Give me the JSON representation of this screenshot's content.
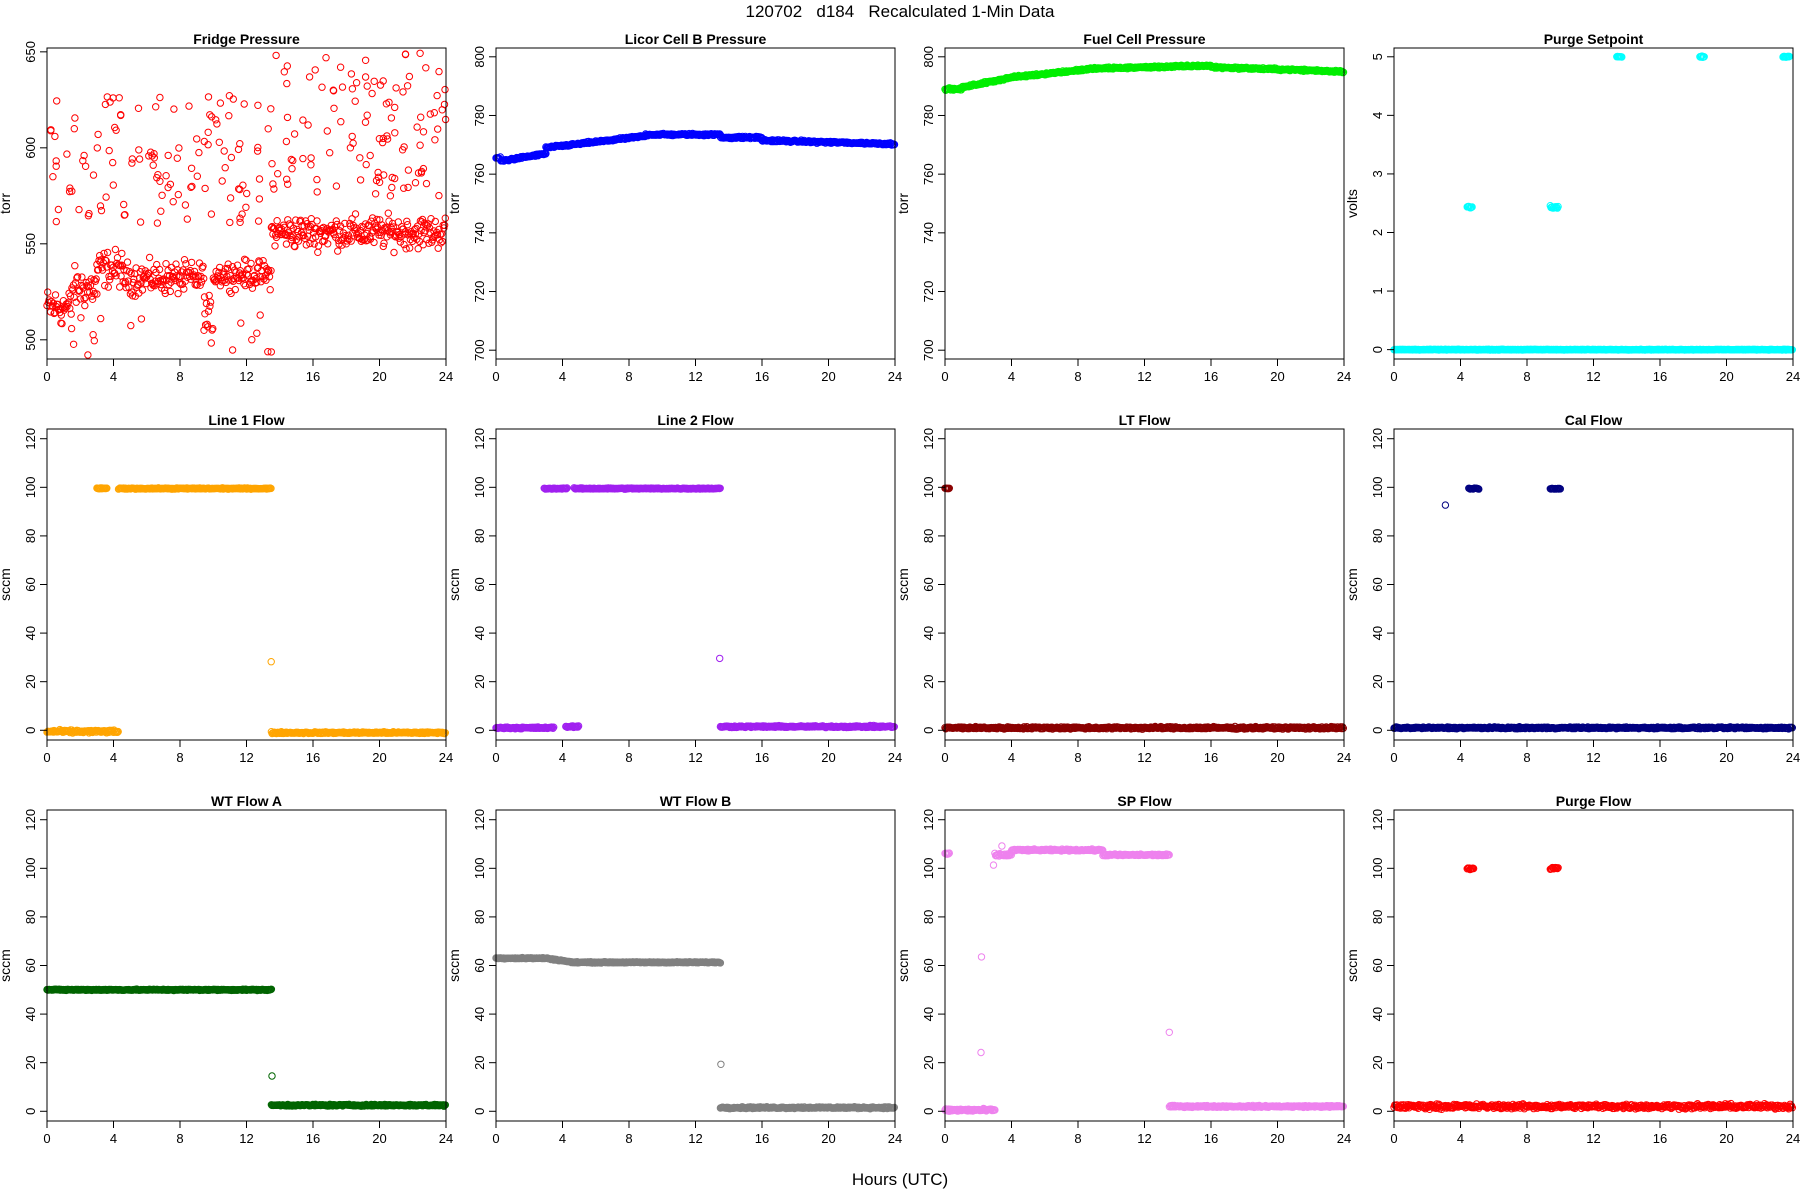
{
  "figure": {
    "title": "120702   d184   Recalculated 1-Min Data",
    "xlabel": "Hours (UTC)"
  },
  "chart_data": [
    {
      "type": "scatter",
      "title": "Fridge Pressure",
      "ylabel": "torr",
      "color": "#ff0000",
      "xlim": [
        0,
        24
      ],
      "ylim": [
        490,
        652
      ],
      "xticks": [
        0,
        4,
        8,
        12,
        16,
        20,
        24
      ],
      "yticks": [
        500,
        550,
        600,
        650
      ],
      "segments": [
        {
          "x0": 0,
          "x1": 1.5,
          "y": 517,
          "jitter": 8
        },
        {
          "x0": 1.5,
          "x1": 3,
          "y": 527,
          "jitter": 9
        },
        {
          "x0": 3,
          "x1": 4.5,
          "y": 537,
          "jitter": 8
        },
        {
          "x0": 4.5,
          "x1": 9.5,
          "y": 532,
          "jitter": 7
        },
        {
          "x0": 9.5,
          "x1": 10,
          "y": 510,
          "jitter": 10
        },
        {
          "x0": 10,
          "x1": 13.5,
          "y": 534,
          "jitter": 6
        },
        {
          "x0": 13.5,
          "x1": 24,
          "y": 556,
          "jitter": 7
        }
      ],
      "outliers": [
        {
          "x0": 0,
          "x1": 13.5,
          "ymin": 560,
          "ymax": 628,
          "n": 120
        },
        {
          "x0": 13.5,
          "x1": 24,
          "ymin": 575,
          "ymax": 650,
          "n": 110
        },
        {
          "x0": 0,
          "x1": 13.5,
          "ymin": 492,
          "ymax": 515,
          "n": 18
        }
      ]
    },
    {
      "type": "scatter",
      "title": "Licor Cell B Pressure",
      "ylabel": "torr",
      "color": "#0000ff",
      "xlim": [
        0,
        24
      ],
      "ylim": [
        697,
        803
      ],
      "xticks": [
        0,
        4,
        8,
        12,
        16,
        20,
        24
      ],
      "yticks": [
        700,
        720,
        740,
        760,
        780,
        800
      ],
      "segments": [
        {
          "x0": 0,
          "x1": 0.3,
          "y": 765.5,
          "jitter": 0.3
        },
        {
          "x0": 0.3,
          "x1": 3,
          "y0": 764.5,
          "y1": 767,
          "jitter": 0.3
        },
        {
          "x0": 3,
          "x1": 9,
          "y0": 769,
          "y1": 773,
          "jitter": 0.3
        },
        {
          "x0": 9,
          "x1": 13.5,
          "y": 773.5,
          "jitter": 0.3
        },
        {
          "x0": 13.5,
          "x1": 16,
          "y": 772.5,
          "jitter": 0.3
        },
        {
          "x0": 16,
          "x1": 24,
          "y0": 771.5,
          "y1": 770.3,
          "jitter": 0.3
        }
      ],
      "outliers": []
    },
    {
      "type": "scatter",
      "title": "Fuel Cell Pressure",
      "ylabel": "torr",
      "color": "#00ee00",
      "xlim": [
        0,
        24
      ],
      "ylim": [
        697,
        803
      ],
      "xticks": [
        0,
        4,
        8,
        12,
        16,
        20,
        24
      ],
      "yticks": [
        700,
        720,
        740,
        760,
        780,
        800
      ],
      "segments": [
        {
          "x0": 0,
          "x1": 1,
          "y": 789,
          "jitter": 0.3
        },
        {
          "x0": 1,
          "x1": 4,
          "y0": 789.5,
          "y1": 793,
          "jitter": 0.3
        },
        {
          "x0": 4,
          "x1": 9,
          "y0": 793,
          "y1": 796,
          "jitter": 0.3
        },
        {
          "x0": 9,
          "x1": 16,
          "y0": 796,
          "y1": 797,
          "jitter": 0.3
        },
        {
          "x0": 16,
          "x1": 24,
          "y0": 796.5,
          "y1": 795,
          "jitter": 0.3
        }
      ],
      "outliers": []
    },
    {
      "type": "scatter",
      "title": "Purge Setpoint",
      "ylabel": "volts",
      "color": "#00ffff",
      "xlim": [
        0,
        24
      ],
      "ylim": [
        -0.16,
        5.15
      ],
      "xticks": [
        0,
        4,
        8,
        12,
        16,
        20,
        24
      ],
      "yticks": [
        0,
        1,
        2,
        3,
        4,
        5
      ],
      "segments": [
        {
          "x0": 0,
          "x1": 24,
          "y": 0,
          "jitter": 0.005
        },
        {
          "x0": 4.4,
          "x1": 4.7,
          "y": 2.43,
          "jitter": 0.02
        },
        {
          "x0": 9.4,
          "x1": 9.9,
          "y": 2.43,
          "jitter": 0.02
        },
        {
          "x0": 13.4,
          "x1": 13.7,
          "y": 5,
          "jitter": 0.01
        },
        {
          "x0": 18.4,
          "x1": 18.7,
          "y": 5,
          "jitter": 0.01
        },
        {
          "x0": 23.4,
          "x1": 23.8,
          "y": 5,
          "jitter": 0.01
        }
      ],
      "outliers": []
    },
    {
      "type": "scatter",
      "title": "Line 1 Flow",
      "ylabel": "sccm",
      "color": "#ffa500",
      "xlim": [
        0,
        24
      ],
      "ylim": [
        -4,
        124
      ],
      "xticks": [
        0,
        4,
        8,
        12,
        16,
        20,
        24
      ],
      "yticks": [
        0,
        20,
        40,
        60,
        80,
        100,
        120
      ],
      "segments": [
        {
          "x0": 0,
          "x1": 4.3,
          "y": -0.5,
          "jitter": 0.5
        },
        {
          "x0": 3,
          "x1": 3.6,
          "y": 99.5,
          "jitter": 0.2
        },
        {
          "x0": 4.3,
          "x1": 13.5,
          "y": 99.5,
          "jitter": 0.2
        },
        {
          "x0": 13.5,
          "x1": 24,
          "y": -1,
          "jitter": 0.3
        }
      ],
      "outliers": [
        {
          "x0": 13.45,
          "x1": 13.55,
          "ymin": 28,
          "ymax": 28.6,
          "n": 1
        }
      ]
    },
    {
      "type": "scatter",
      "title": "Line 2 Flow",
      "ylabel": "sccm",
      "color": "#a020f0",
      "xlim": [
        0,
        24
      ],
      "ylim": [
        -4,
        124
      ],
      "xticks": [
        0,
        4,
        8,
        12,
        16,
        20,
        24
      ],
      "yticks": [
        0,
        20,
        40,
        60,
        80,
        100,
        120
      ],
      "segments": [
        {
          "x0": 0,
          "x1": 3.5,
          "y": 1,
          "jitter": 0.3
        },
        {
          "x0": 4.2,
          "x1": 5,
          "y": 1.5,
          "jitter": 0.3
        },
        {
          "x0": 2.9,
          "x1": 4.3,
          "y": 99.5,
          "jitter": 0.2
        },
        {
          "x0": 4.7,
          "x1": 13.5,
          "y": 99.5,
          "jitter": 0.2
        },
        {
          "x0": 13.5,
          "x1": 24,
          "y": 1.5,
          "jitter": 0.3
        }
      ],
      "outliers": [
        {
          "x0": 13.45,
          "x1": 13.55,
          "ymin": 29,
          "ymax": 29.6,
          "n": 1
        }
      ]
    },
    {
      "type": "scatter",
      "title": "LT Flow",
      "ylabel": "sccm",
      "color": "#8b0000",
      "xlim": [
        0,
        24
      ],
      "ylim": [
        -4,
        124
      ],
      "xticks": [
        0,
        4,
        8,
        12,
        16,
        20,
        24
      ],
      "yticks": [
        0,
        20,
        40,
        60,
        80,
        100,
        120
      ],
      "segments": [
        {
          "x0": 0,
          "x1": 24,
          "y": 1,
          "jitter": 0.4
        },
        {
          "x0": 0,
          "x1": 0.3,
          "y": 99.5,
          "jitter": 0.2
        }
      ],
      "outliers": []
    },
    {
      "type": "scatter",
      "title": "Cal Flow",
      "ylabel": "sccm",
      "color": "#000080",
      "xlim": [
        0,
        24
      ],
      "ylim": [
        -4,
        124
      ],
      "xticks": [
        0,
        4,
        8,
        12,
        16,
        20,
        24
      ],
      "yticks": [
        0,
        20,
        40,
        60,
        80,
        100,
        120
      ],
      "segments": [
        {
          "x0": 0,
          "x1": 24,
          "y": 1,
          "jitter": 0.3
        },
        {
          "x0": 4.5,
          "x1": 5.1,
          "y": 99.5,
          "jitter": 0.2
        },
        {
          "x0": 9.4,
          "x1": 10,
          "y": 99.5,
          "jitter": 0.2
        }
      ],
      "outliers": [
        {
          "x0": 2.9,
          "x1": 3.1,
          "ymin": 92.5,
          "ymax": 93,
          "n": 1
        }
      ]
    },
    {
      "type": "scatter",
      "title": "WT Flow A",
      "ylabel": "sccm",
      "color": "#006400",
      "xlim": [
        0,
        24
      ],
      "ylim": [
        -4,
        124
      ],
      "xticks": [
        0,
        4,
        8,
        12,
        16,
        20,
        24
      ],
      "yticks": [
        0,
        20,
        40,
        60,
        80,
        100,
        120
      ],
      "segments": [
        {
          "x0": 0,
          "x1": 13.5,
          "y": 50,
          "jitter": 0.2
        },
        {
          "x0": 13.5,
          "x1": 24,
          "y": 2.5,
          "jitter": 0.3
        }
      ],
      "outliers": [
        {
          "x0": 13.45,
          "x1": 13.55,
          "ymin": 14.5,
          "ymax": 15,
          "n": 1
        }
      ]
    },
    {
      "type": "scatter",
      "title": "WT Flow B",
      "ylabel": "sccm",
      "color": "#808080",
      "xlim": [
        0,
        24
      ],
      "ylim": [
        -4,
        124
      ],
      "xticks": [
        0,
        4,
        8,
        12,
        16,
        20,
        24
      ],
      "yticks": [
        0,
        20,
        40,
        60,
        80,
        100,
        120
      ],
      "segments": [
        {
          "x0": 0,
          "x1": 3,
          "y": 63,
          "jitter": 0.2
        },
        {
          "x0": 3,
          "x1": 4.5,
          "y0": 63,
          "y1": 61.5,
          "jitter": 0.2
        },
        {
          "x0": 4.5,
          "x1": 13.5,
          "y": 61.3,
          "jitter": 0.2
        },
        {
          "x0": 13.5,
          "x1": 24,
          "y": 1.5,
          "jitter": 0.3
        }
      ],
      "outliers": [
        {
          "x0": 13.45,
          "x1": 13.55,
          "ymin": 19,
          "ymax": 19.5,
          "n": 1
        }
      ]
    },
    {
      "type": "scatter",
      "title": "SP Flow",
      "ylabel": "sccm",
      "color": "#ee82ee",
      "xlim": [
        0,
        24
      ],
      "ylim": [
        -4,
        124
      ],
      "xticks": [
        0,
        4,
        8,
        12,
        16,
        20,
        24
      ],
      "yticks": [
        0,
        20,
        40,
        60,
        80,
        100,
        120
      ],
      "segments": [
        {
          "x0": 0,
          "x1": 0.3,
          "y": 106,
          "jitter": 0.3
        },
        {
          "x0": 0,
          "x1": 3,
          "y": 0.5,
          "jitter": 0.5
        },
        {
          "x0": 3,
          "x1": 4,
          "y": 105.5,
          "jitter": 0.5
        },
        {
          "x0": 4,
          "x1": 9.5,
          "y": 107.5,
          "jitter": 0.3
        },
        {
          "x0": 9.5,
          "x1": 13.5,
          "y": 105.5,
          "jitter": 0.3
        },
        {
          "x0": 13.5,
          "x1": 24,
          "y": 2,
          "jitter": 0.3
        }
      ],
      "outliers": [
        {
          "x0": 2.1,
          "x1": 2.2,
          "ymin": 63.5,
          "ymax": 64,
          "n": 1
        },
        {
          "x0": 2.1,
          "x1": 2.2,
          "ymin": 24,
          "ymax": 24.5,
          "n": 1
        },
        {
          "x0": 2.9,
          "x1": 3.1,
          "ymin": 101,
          "ymax": 101.5,
          "n": 1
        },
        {
          "x0": 3.4,
          "x1": 3.6,
          "ymin": 109,
          "ymax": 109.5,
          "n": 1
        },
        {
          "x0": 13.4,
          "x1": 13.5,
          "ymin": 32.5,
          "ymax": 33,
          "n": 1
        }
      ]
    },
    {
      "type": "scatter",
      "title": "Purge Flow",
      "ylabel": "sccm",
      "color": "#ff0000",
      "xlim": [
        0,
        24
      ],
      "ylim": [
        -4,
        124
      ],
      "xticks": [
        0,
        4,
        8,
        12,
        16,
        20,
        24
      ],
      "yticks": [
        0,
        20,
        40,
        60,
        80,
        100,
        120
      ],
      "segments": [
        {
          "x0": 0,
          "x1": 24,
          "y": 2,
          "jitter": 0.8
        },
        {
          "x0": 4.4,
          "x1": 4.8,
          "y": 100,
          "jitter": 0.4
        },
        {
          "x0": 9.4,
          "x1": 9.9,
          "y": 100,
          "jitter": 0.4
        }
      ],
      "outliers": []
    }
  ]
}
